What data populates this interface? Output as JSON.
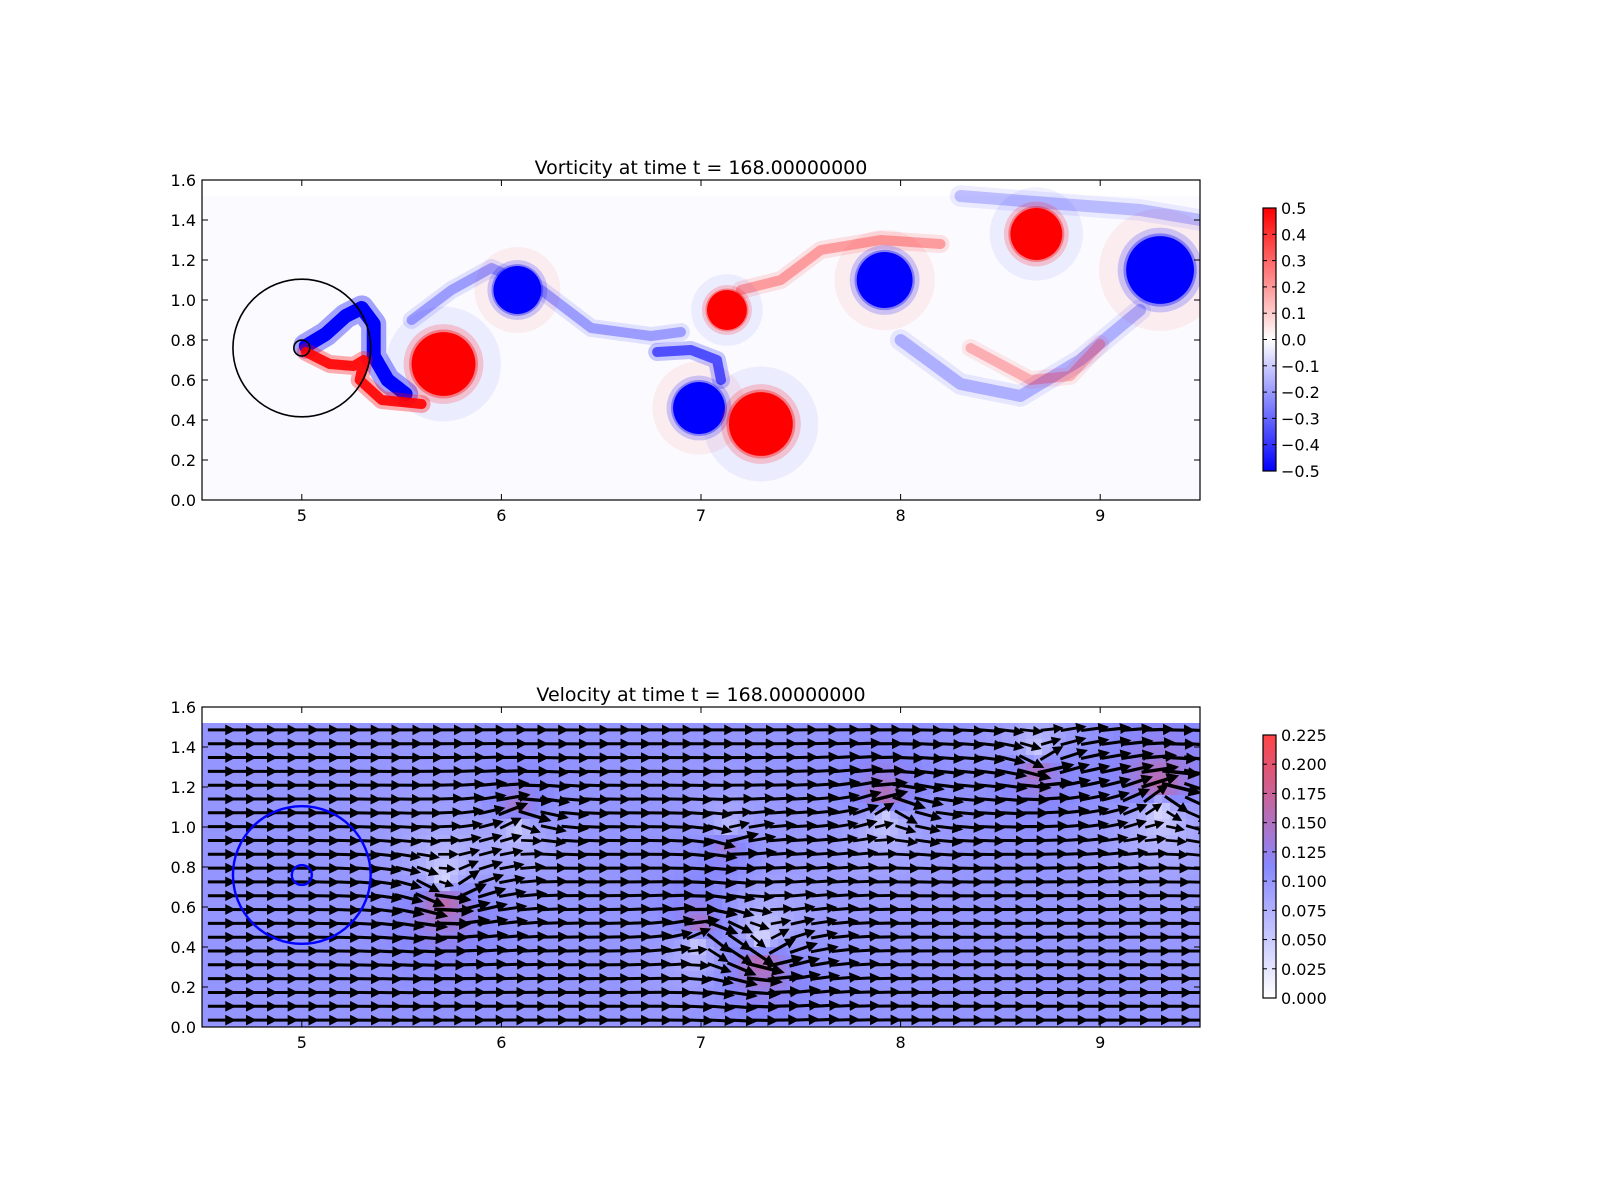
{
  "chart_data": [
    {
      "type": "heatmap",
      "title": "Vorticity at time t =   168.00000000",
      "xlabel": "",
      "ylabel": "",
      "xlim": [
        4.5,
        9.5
      ],
      "ylim": [
        0.0,
        1.6
      ],
      "data_extent": {
        "x": [
          4.5,
          9.5
        ],
        "y": [
          0.0,
          1.52
        ]
      },
      "x_ticks": [
        "5",
        "6",
        "7",
        "8",
        "9"
      ],
      "y_ticks": [
        "0.0",
        "0.2",
        "0.4",
        "0.6",
        "0.8",
        "1.0",
        "1.2",
        "1.4",
        "1.6"
      ],
      "colorbar": {
        "range": [
          -0.5,
          0.5
        ],
        "ticks": [
          "0.5",
          "0.4",
          "0.3",
          "0.2",
          "0.1",
          "0.0",
          "−0.1",
          "−0.2",
          "−0.3",
          "−0.4",
          "−0.5"
        ],
        "colors": {
          "low": "#0000ff",
          "mid": "#ffffff",
          "high": "#ff0000"
        }
      },
      "vortices": [
        {
          "x": 6.08,
          "y": 1.05,
          "r": 0.12,
          "w": -0.5
        },
        {
          "x": 5.71,
          "y": 0.68,
          "r": 0.16,
          "w": 0.5
        },
        {
          "x": 7.13,
          "y": 0.95,
          "r": 0.1,
          "w": 0.5
        },
        {
          "x": 6.99,
          "y": 0.46,
          "r": 0.13,
          "w": -0.5
        },
        {
          "x": 7.3,
          "y": 0.38,
          "r": 0.16,
          "w": 0.5
        },
        {
          "x": 7.92,
          "y": 1.1,
          "r": 0.14,
          "w": -0.5
        },
        {
          "x": 8.68,
          "y": 1.33,
          "r": 0.13,
          "w": 0.5
        },
        {
          "x": 9.3,
          "y": 1.15,
          "r": 0.17,
          "w": -0.5
        }
      ],
      "filaments": [
        {
          "w": -0.5,
          "width": 0.07,
          "points": [
            [
              5.02,
              0.77
            ],
            [
              5.12,
              0.83
            ],
            [
              5.22,
              0.92
            ],
            [
              5.3,
              0.96
            ],
            [
              5.36,
              0.88
            ],
            [
              5.36,
              0.72
            ],
            [
              5.43,
              0.6
            ],
            [
              5.52,
              0.53
            ]
          ]
        },
        {
          "w": 0.45,
          "width": 0.05,
          "points": [
            [
              5.02,
              0.74
            ],
            [
              5.14,
              0.68
            ],
            [
              5.26,
              0.67
            ],
            [
              5.31,
              0.7
            ],
            [
              5.29,
              0.6
            ],
            [
              5.4,
              0.5
            ],
            [
              5.6,
              0.48
            ]
          ]
        },
        {
          "w": -0.15,
          "width": 0.05,
          "points": [
            [
              5.55,
              0.9
            ],
            [
              5.75,
              1.05
            ],
            [
              5.95,
              1.16
            ],
            [
              6.2,
              1.05
            ],
            [
              6.45,
              0.86
            ],
            [
              6.75,
              0.82
            ],
            [
              6.9,
              0.84
            ]
          ]
        },
        {
          "w": -0.3,
          "width": 0.05,
          "points": [
            [
              6.78,
              0.74
            ],
            [
              6.95,
              0.75
            ],
            [
              7.08,
              0.7
            ],
            [
              7.1,
              0.6
            ]
          ]
        },
        {
          "w": 0.15,
          "width": 0.05,
          "points": [
            [
              7.2,
              1.05
            ],
            [
              7.4,
              1.1
            ],
            [
              7.6,
              1.25
            ],
            [
              7.9,
              1.3
            ],
            [
              8.2,
              1.28
            ]
          ]
        },
        {
          "w": -0.12,
          "width": 0.06,
          "points": [
            [
              8.0,
              0.8
            ],
            [
              8.3,
              0.58
            ],
            [
              8.6,
              0.52
            ],
            [
              8.9,
              0.7
            ],
            [
              9.2,
              0.95
            ]
          ]
        },
        {
          "w": 0.12,
          "width": 0.05,
          "points": [
            [
              8.35,
              0.76
            ],
            [
              8.65,
              0.6
            ],
            [
              8.85,
              0.62
            ],
            [
              9.0,
              0.78
            ]
          ]
        },
        {
          "w": -0.1,
          "width": 0.06,
          "points": [
            [
              8.3,
              1.52
            ],
            [
              8.8,
              1.48
            ],
            [
              9.2,
              1.45
            ],
            [
              9.5,
              1.4
            ]
          ]
        }
      ],
      "circles": [
        {
          "x": 5.0,
          "y": 0.76,
          "r": 0.345,
          "color": "#000000"
        },
        {
          "x": 5.0,
          "y": 0.76,
          "r": 0.04,
          "color": "#000000"
        }
      ]
    },
    {
      "type": "heatmap",
      "title": "Velocity at time t =   168.00000000",
      "xlabel": "",
      "ylabel": "",
      "xlim": [
        4.5,
        9.5
      ],
      "ylim": [
        0.0,
        1.6
      ],
      "data_extent": {
        "x": [
          4.5,
          9.5
        ],
        "y": [
          0.0,
          1.52
        ]
      },
      "x_ticks": [
        "5",
        "6",
        "7",
        "8",
        "9"
      ],
      "y_ticks": [
        "0.0",
        "0.2",
        "0.4",
        "0.6",
        "0.8",
        "1.0",
        "1.2",
        "1.4",
        "1.6"
      ],
      "colorbar": {
        "range": [
          0.0,
          0.225
        ],
        "ticks": [
          "0.225",
          "0.200",
          "0.175",
          "0.150",
          "0.125",
          "0.100",
          "0.075",
          "0.050",
          "0.025",
          "0.000"
        ],
        "colors": {
          "low": "#ffffff",
          "mid": "#8888ff",
          "high": "#ff4444"
        }
      },
      "free_stream": {
        "u": 0.1,
        "v": 0.0
      },
      "vortices": [
        {
          "x": 6.08,
          "y": 1.05,
          "r": 0.12,
          "w": -0.5
        },
        {
          "x": 5.71,
          "y": 0.68,
          "r": 0.16,
          "w": 0.5
        },
        {
          "x": 7.13,
          "y": 0.95,
          "r": 0.1,
          "w": 0.5
        },
        {
          "x": 6.99,
          "y": 0.46,
          "r": 0.13,
          "w": -0.5
        },
        {
          "x": 7.3,
          "y": 0.38,
          "r": 0.16,
          "w": 0.5
        },
        {
          "x": 7.92,
          "y": 1.1,
          "r": 0.14,
          "w": -0.5
        },
        {
          "x": 8.68,
          "y": 1.33,
          "r": 0.13,
          "w": 0.5
        },
        {
          "x": 9.3,
          "y": 1.15,
          "r": 0.17,
          "w": -0.5
        }
      ],
      "circles": [
        {
          "x": 5.0,
          "y": 0.76,
          "r": 0.345,
          "color": "#0000ff"
        },
        {
          "x": 5.0,
          "y": 0.76,
          "r": 0.05,
          "color": "#0000ff"
        }
      ]
    }
  ]
}
